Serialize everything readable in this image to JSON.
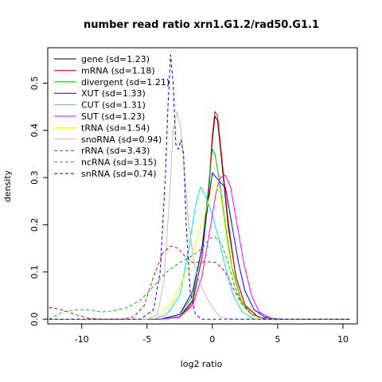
{
  "chart_data": {
    "type": "line",
    "title": "number read ratio xrn1.G1.2/rad50.G1.1",
    "xlabel": "log2 ratio",
    "ylabel": "density",
    "xlim": [
      -12.6,
      11.1
    ],
    "ylim": [
      -0.01,
      0.575
    ],
    "xticks": [
      -10,
      -5,
      0,
      5,
      10
    ],
    "yticks": [
      0.0,
      0.1,
      0.2,
      0.3,
      0.4,
      0.5
    ],
    "xtick_labels": [
      "-10",
      "-5",
      "0",
      "5",
      "10"
    ],
    "ytick_labels": [
      "0.0",
      "0.1",
      "0.2",
      "0.3",
      "0.4",
      "0.5"
    ],
    "grid": false,
    "legend_position": "top-left",
    "series": [
      {
        "name": "gene (sd=1.23)",
        "color": "#000000",
        "dash": "solid",
        "points": [
          [
            -12.5,
            0
          ],
          [
            -4,
            0
          ],
          [
            -2.5,
            0.005
          ],
          [
            -1.5,
            0.04
          ],
          [
            -0.8,
            0.13
          ],
          [
            -0.3,
            0.26
          ],
          [
            0,
            0.38
          ],
          [
            0.2,
            0.43
          ],
          [
            0.4,
            0.42
          ],
          [
            0.7,
            0.34
          ],
          [
            1.2,
            0.2
          ],
          [
            1.8,
            0.09
          ],
          [
            2.5,
            0.03
          ],
          [
            3.5,
            0.005
          ],
          [
            4.5,
            0
          ],
          [
            10.5,
            0
          ]
        ]
      },
      {
        "name": "mRNA (sd=1.18)",
        "color": "#ff0000",
        "dash": "solid",
        "points": [
          [
            -12.5,
            0
          ],
          [
            -4,
            0
          ],
          [
            -2.5,
            0.004
          ],
          [
            -1.5,
            0.035
          ],
          [
            -0.8,
            0.13
          ],
          [
            -0.3,
            0.27
          ],
          [
            0,
            0.39
          ],
          [
            0.2,
            0.44
          ],
          [
            0.4,
            0.43
          ],
          [
            0.7,
            0.35
          ],
          [
            1.2,
            0.21
          ],
          [
            1.8,
            0.09
          ],
          [
            2.5,
            0.03
          ],
          [
            3.5,
            0.004
          ],
          [
            4.5,
            0
          ],
          [
            10.5,
            0
          ]
        ]
      },
      {
        "name": "divergent (sd=1.21)",
        "color": "#00c000",
        "dash": "solid",
        "points": [
          [
            -12.5,
            0
          ],
          [
            -4,
            0
          ],
          [
            -2.5,
            0.01
          ],
          [
            -1.5,
            0.05
          ],
          [
            -0.8,
            0.15
          ],
          [
            -0.3,
            0.28
          ],
          [
            0,
            0.36
          ],
          [
            0.2,
            0.35
          ],
          [
            0.5,
            0.3
          ],
          [
            1,
            0.2
          ],
          [
            1.5,
            0.11
          ],
          [
            2.2,
            0.04
          ],
          [
            3,
            0.01
          ],
          [
            4,
            0
          ],
          [
            10.5,
            0
          ]
        ]
      },
      {
        "name": "XUT (sd=1.33)",
        "color": "#0000ff",
        "dash": "solid",
        "points": [
          [
            -12.5,
            0
          ],
          [
            -4,
            0
          ],
          [
            -2.5,
            0.01
          ],
          [
            -1.5,
            0.06
          ],
          [
            -0.8,
            0.15
          ],
          [
            -0.3,
            0.25
          ],
          [
            0,
            0.31
          ],
          [
            0.3,
            0.3
          ],
          [
            0.6,
            0.29
          ],
          [
            1,
            0.28
          ],
          [
            1.5,
            0.2
          ],
          [
            2,
            0.12
          ],
          [
            2.5,
            0.06
          ],
          [
            3.2,
            0.02
          ],
          [
            4,
            0.005
          ],
          [
            5,
            0
          ],
          [
            10.5,
            0
          ]
        ]
      },
      {
        "name": "CUT (sd=1.31)",
        "color": "#00e5ee",
        "dash": "solid",
        "points": [
          [
            -12.5,
            0
          ],
          [
            -4.5,
            0
          ],
          [
            -3.5,
            0.01
          ],
          [
            -2.5,
            0.05
          ],
          [
            -1.8,
            0.15
          ],
          [
            -1.3,
            0.24
          ],
          [
            -0.9,
            0.28
          ],
          [
            -0.5,
            0.26
          ],
          [
            0,
            0.22
          ],
          [
            0.5,
            0.17
          ],
          [
            1,
            0.11
          ],
          [
            1.6,
            0.05
          ],
          [
            2.3,
            0.015
          ],
          [
            3.2,
            0
          ],
          [
            10.5,
            0
          ]
        ]
      },
      {
        "name": "SUT (sd=1.23)",
        "color": "#ff00ff",
        "dash": "solid",
        "points": [
          [
            -12.5,
            0
          ],
          [
            -4,
            0
          ],
          [
            -2.5,
            0.005
          ],
          [
            -1.5,
            0.03
          ],
          [
            -0.8,
            0.09
          ],
          [
            -0.3,
            0.17
          ],
          [
            0,
            0.22
          ],
          [
            0.3,
            0.27
          ],
          [
            0.6,
            0.3
          ],
          [
            1,
            0.305
          ],
          [
            1.4,
            0.28
          ],
          [
            1.9,
            0.2
          ],
          [
            2.4,
            0.12
          ],
          [
            3,
            0.05
          ],
          [
            3.6,
            0.015
          ],
          [
            4.5,
            0.002
          ],
          [
            5.5,
            0
          ],
          [
            10.5,
            0
          ]
        ]
      },
      {
        "name": "tRNA (sd=1.54)",
        "color": "#ffff00",
        "dash": "solid",
        "points": [
          [
            -12.5,
            0
          ],
          [
            -5,
            0
          ],
          [
            -4,
            0.01
          ],
          [
            -3,
            0.04
          ],
          [
            -2,
            0.1
          ],
          [
            -1.2,
            0.17
          ],
          [
            -0.5,
            0.23
          ],
          [
            0,
            0.28
          ],
          [
            0.3,
            0.285
          ],
          [
            0.7,
            0.25
          ],
          [
            1.2,
            0.15
          ],
          [
            1.8,
            0.06
          ],
          [
            2.5,
            0.02
          ],
          [
            3.5,
            0.003
          ],
          [
            4.5,
            0
          ],
          [
            10.5,
            0
          ]
        ]
      },
      {
        "name": "snoRNA (sd=0.94)",
        "color": "#bebebe",
        "dash": "solid",
        "points": [
          [
            -12.5,
            0
          ],
          [
            -5,
            0
          ],
          [
            -4.2,
            0.01
          ],
          [
            -3.7,
            0.08
          ],
          [
            -3.3,
            0.25
          ],
          [
            -3,
            0.4
          ],
          [
            -2.7,
            0.44
          ],
          [
            -2.4,
            0.4
          ],
          [
            -2.1,
            0.3
          ],
          [
            -1.8,
            0.2
          ],
          [
            -1.4,
            0.12
          ],
          [
            -1,
            0.08
          ],
          [
            -0.5,
            0.05
          ],
          [
            0,
            0.025
          ],
          [
            0.6,
            0.005
          ],
          [
            1.5,
            0
          ],
          [
            10.5,
            0
          ]
        ]
      },
      {
        "name": "rRNA (sd=3.43)",
        "color": "#ff0000",
        "dash": "dashed",
        "points": [
          [
            -12.5,
            0.025
          ],
          [
            -11.5,
            0.02
          ],
          [
            -10.5,
            0.01
          ],
          [
            -9.5,
            0.002
          ],
          [
            -8.5,
            0
          ],
          [
            -7,
            0
          ],
          [
            -6,
            0.005
          ],
          [
            -5.2,
            0.03
          ],
          [
            -4.5,
            0.09
          ],
          [
            -3.8,
            0.14
          ],
          [
            -3.2,
            0.155
          ],
          [
            -2.6,
            0.15
          ],
          [
            -2,
            0.13
          ],
          [
            -1.5,
            0.12
          ],
          [
            -0.5,
            0.122
          ],
          [
            0.3,
            0.12
          ],
          [
            1,
            0.1
          ],
          [
            1.5,
            0.07
          ],
          [
            2.2,
            0.035
          ],
          [
            3,
            0.01
          ],
          [
            4,
            0
          ],
          [
            10.5,
            0
          ]
        ]
      },
      {
        "name": "ncRNA (sd=3.15)",
        "color": "#00c000",
        "dash": "dashed",
        "points": [
          [
            -12.5,
            0
          ],
          [
            -11.5,
            0.015
          ],
          [
            -10.5,
            0.02
          ],
          [
            -9.5,
            0.02
          ],
          [
            -8.5,
            0.015
          ],
          [
            -7.5,
            0.018
          ],
          [
            -6.5,
            0.025
          ],
          [
            -5.5,
            0.04
          ],
          [
            -4.5,
            0.07
          ],
          [
            -3.5,
            0.1
          ],
          [
            -2.5,
            0.12
          ],
          [
            -1.5,
            0.135
          ],
          [
            -0.8,
            0.15
          ],
          [
            -0.2,
            0.17
          ],
          [
            0.2,
            0.175
          ],
          [
            0.7,
            0.16
          ],
          [
            1.2,
            0.12
          ],
          [
            1.7,
            0.07
          ],
          [
            2.3,
            0.03
          ],
          [
            3,
            0.01
          ],
          [
            4,
            0.002
          ],
          [
            5,
            0
          ],
          [
            10.5,
            0
          ]
        ]
      },
      {
        "name": "snRNA (sd=0.74)",
        "color": "#0000ff",
        "dash": "dashed",
        "points": [
          [
            -12.5,
            0
          ],
          [
            -5.5,
            0
          ],
          [
            -4.5,
            0.02
          ],
          [
            -4,
            0.1
          ],
          [
            -3.6,
            0.3
          ],
          [
            -3.4,
            0.45
          ],
          [
            -3.2,
            0.56
          ],
          [
            -3,
            0.5
          ],
          [
            -2.8,
            0.37
          ],
          [
            -2.6,
            0.36
          ],
          [
            -2.4,
            0.38
          ],
          [
            -2.2,
            0.35
          ],
          [
            -2,
            0.2
          ],
          [
            -1.7,
            0.06
          ],
          [
            -1.3,
            0.01
          ],
          [
            -0.8,
            0
          ],
          [
            10.5,
            0
          ]
        ]
      }
    ]
  }
}
